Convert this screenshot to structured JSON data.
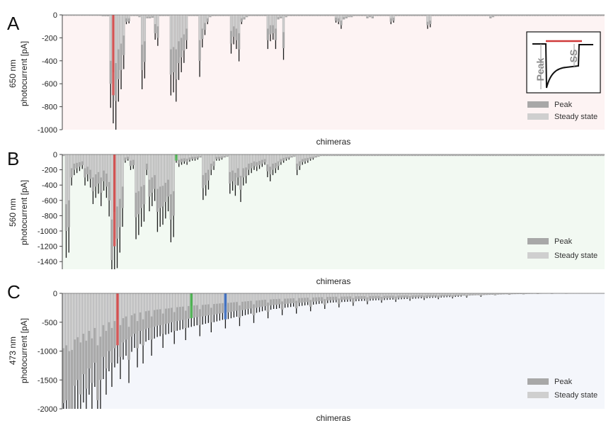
{
  "figure": {
    "legend": {
      "peak_label": "Peak",
      "steady_label": "Steady state",
      "peak_color": "#a8a8a8",
      "steady_color": "#cfcfcf"
    },
    "inset": {
      "peak_label": "Peak",
      "ss_label": "SS",
      "bar_color": "#d03a3a"
    }
  },
  "chart_data": [
    {
      "type": "bar",
      "panel_letter": "A",
      "ylabel": "650 nm photocurrent [pA]",
      "xlabel": "chimeras",
      "ylim": [
        -1000,
        0
      ],
      "yticks": [
        0,
        -200,
        -400,
        -600,
        -800,
        -1000
      ],
      "bg_color": "#fdf3f3",
      "highlights": [
        {
          "index": 19,
          "color": "#d05050"
        }
      ],
      "peak_values": [
        -8,
        -8,
        -8,
        -8,
        -8,
        -8,
        -8,
        -8,
        -8,
        -8,
        -8,
        -8,
        -8,
        -8,
        -8,
        -12,
        -12,
        -12,
        -600,
        -700,
        -750,
        -560,
        -480,
        -350,
        -60,
        -55,
        -10,
        -10,
        -10,
        -20,
        -480,
        -410,
        -30,
        -30,
        -25,
        -160,
        -200,
        -10,
        -10,
        -10,
        -10,
        -520,
        -500,
        -560,
        -420,
        -370,
        -310,
        -220,
        -10,
        -10,
        -10,
        -10,
        -400,
        -210,
        -130,
        -60,
        -20,
        -10,
        -10,
        -10,
        -10,
        -10,
        -10,
        -10,
        -250,
        -190,
        -220,
        -300,
        -60,
        -40,
        -20,
        -10,
        -10,
        -10,
        -10,
        -10,
        -10,
        -10,
        -220,
        -170,
        -160,
        -220,
        -40,
        -30,
        -290,
        -20,
        -10,
        -10,
        -10,
        -10,
        -10,
        -10,
        -10,
        -10,
        -10,
        -10,
        -10,
        -10,
        -10,
        -10,
        -10,
        -10,
        -10,
        -10,
        -50,
        -60,
        -90,
        -40,
        -30,
        -20,
        -20,
        -10,
        -10,
        -10,
        -10,
        -10,
        -30,
        -20,
        -30,
        -10,
        -10,
        -10,
        -10,
        -10,
        -10,
        -60,
        -50,
        -10,
        -10,
        -10,
        -10,
        -10,
        -10,
        -10,
        -10,
        -10,
        -10,
        -10,
        -10,
        -90,
        -80,
        -10,
        -10,
        -10,
        -10,
        -10,
        -10,
        -10,
        -10,
        -10,
        -10,
        -10,
        -10,
        -10,
        -10,
        -10,
        -10,
        -10,
        -10,
        -10,
        -10,
        -10,
        -10,
        -30,
        -20,
        -10,
        -10,
        -10,
        -10,
        -10,
        -10,
        -10,
        -10,
        -10,
        -10,
        -10,
        -10,
        -10,
        -10,
        -10,
        -10,
        -10,
        -10,
        -10,
        -10,
        -10,
        -10,
        -10,
        -10,
        -10,
        -10,
        -10,
        -10,
        -10,
        -10,
        -10,
        -10,
        -10,
        -10,
        -10,
        -10,
        -10,
        -10,
        -10,
        -10,
        -10,
        -10
      ],
      "steady_values": [
        -4,
        -4,
        -4,
        -4,
        -4,
        -4,
        -4,
        -4,
        -4,
        -4,
        -4,
        -4,
        -4,
        -4,
        -4,
        -6,
        -6,
        -6,
        -400,
        -500,
        -420,
        -300,
        -250,
        -180,
        -30,
        -30,
        -5,
        -5,
        -5,
        -10,
        -260,
        -230,
        -15,
        -15,
        -12,
        -80,
        -100,
        -5,
        -5,
        -5,
        -5,
        -300,
        -280,
        -300,
        -230,
        -200,
        -170,
        -120,
        -5,
        -5,
        -5,
        -5,
        -220,
        -120,
        -70,
        -30,
        -10,
        -5,
        -5,
        -5,
        -5,
        -5,
        -5,
        -5,
        -140,
        -100,
        -120,
        -160,
        -30,
        -20,
        -10,
        -5,
        -5,
        -5,
        -5,
        -5,
        -5,
        -5,
        -120,
        -90,
        -90,
        -120,
        -20,
        -15,
        -150,
        -10,
        -5,
        -5,
        -5,
        -5,
        -5,
        -5,
        -5,
        -5,
        -5,
        -5,
        -5,
        -5,
        -5,
        -5,
        -5,
        -5,
        -5,
        -5,
        -25,
        -30,
        -50,
        -20,
        -15,
        -10,
        -10,
        -5,
        -5,
        -5,
        -5,
        -5,
        -15,
        -10,
        -15,
        -5,
        -5,
        -5,
        -5,
        -5,
        -5,
        -30,
        -25,
        -5,
        -5,
        -5,
        -5,
        -5,
        -5,
        -5,
        -5,
        -5,
        -5,
        -5,
        -5,
        -60,
        -50,
        -5,
        -5,
        -5,
        -5,
        -5,
        -5,
        -5,
        -5,
        -5,
        -5,
        -5,
        -5,
        -5,
        -5,
        -5,
        -5,
        -5,
        -5,
        -5,
        -5,
        -5,
        -5,
        -15,
        -10,
        -5,
        -5,
        -5,
        -5,
        -5,
        -5,
        -5,
        -5,
        -5,
        -5,
        -5,
        -5,
        -5,
        -5,
        -5,
        -5,
        -5,
        -5,
        -5,
        -5,
        -5,
        -5,
        -5,
        -5,
        -5,
        -5,
        -5,
        -5,
        -5,
        -5,
        -5,
        -5,
        -5,
        -5,
        -5,
        -5,
        -5,
        -5,
        -5,
        -5,
        -5,
        -5
      ]
    },
    {
      "type": "bar",
      "panel_letter": "B",
      "ylabel": "560 nm photocurrent [pA]",
      "xlabel": "chimeras",
      "ylim": [
        -1500,
        0
      ],
      "yticks": [
        0,
        -200,
        -400,
        -600,
        -800,
        -1000,
        -1200,
        -1400
      ],
      "bg_color": "#f2f9f2",
      "highlights": [
        {
          "index": 19,
          "color": "#d05050"
        },
        {
          "index": 42,
          "color": "#4caf50"
        }
      ],
      "peak_values": [
        -20,
        -1000,
        -950,
        -300,
        -200,
        -180,
        -160,
        -140,
        -300,
        -260,
        -320,
        -480,
        -420,
        -380,
        -500,
        -350,
        -420,
        -600,
        -1380,
        -1200,
        -1100,
        -950,
        -700,
        -80,
        -60,
        -150,
        -140,
        -820,
        -780,
        -700,
        -650,
        -200,
        -550,
        -500,
        -450,
        -750,
        -700,
        -680,
        -620,
        -550,
        -850,
        -800,
        -80,
        -120,
        -100,
        -90,
        -100,
        -70,
        -60,
        -60,
        -50,
        -40,
        -440,
        -400,
        -340,
        -200,
        -150,
        -60,
        -60,
        -50,
        -40,
        -30,
        -380,
        -350,
        -400,
        -300,
        -460,
        -300,
        -280,
        -200,
        -180,
        -150,
        -160,
        -140,
        -120,
        -100,
        -220,
        -260,
        -200,
        -180,
        -150,
        -100,
        -80,
        -60,
        -50,
        -40,
        -30,
        -200,
        -150,
        -100,
        -90,
        -80,
        -60,
        -50,
        -40,
        -30,
        -20,
        -20,
        -20,
        -20,
        -20,
        -20,
        -20,
        -20,
        -20,
        -20,
        -20,
        -20,
        -20,
        -20,
        -20,
        -20,
        -20,
        -20,
        -20,
        -20,
        -20,
        -20,
        -20,
        -20,
        -20,
        -20,
        -20,
        -20,
        -20,
        -20,
        -20,
        -20,
        -20,
        -20,
        -20,
        -20,
        -20,
        -20,
        -20,
        -20,
        -20,
        -20,
        -20,
        -20,
        -20,
        -20,
        -20,
        -20,
        -20,
        -20,
        -20,
        -20,
        -20,
        -20,
        -20,
        -20,
        -20,
        -20,
        -20,
        -20,
        -20,
        -20,
        -20,
        -20,
        -20,
        -20,
        -20,
        -20,
        -20,
        -20,
        -20,
        -20,
        -20,
        -20,
        -20,
        -20,
        -20,
        -20,
        -20,
        -20,
        -20,
        -20,
        -20,
        -20,
        -20,
        -20,
        -20,
        -20,
        -20,
        -20,
        -20,
        -20,
        -20,
        -20,
        -20,
        -20,
        -20,
        -20,
        -20,
        -20,
        -20,
        -20,
        -20,
        -20,
        -20,
        -20
      ],
      "steady_values": [
        -10,
        -650,
        -600,
        -180,
        -120,
        -110,
        -100,
        -90,
        -180,
        -160,
        -200,
        -300,
        -260,
        -230,
        -300,
        -210,
        -250,
        -360,
        -850,
        -750,
        -680,
        -580,
        -420,
        -40,
        -30,
        -80,
        -70,
        -500,
        -480,
        -420,
        -400,
        -120,
        -330,
        -300,
        -270,
        -450,
        -420,
        -410,
        -370,
        -330,
        -520,
        -480,
        -40,
        -70,
        -55,
        -50,
        -55,
        -40,
        -30,
        -30,
        -25,
        -20,
        -270,
        -240,
        -200,
        -120,
        -90,
        -30,
        -30,
        -25,
        -20,
        -15,
        -230,
        -210,
        -240,
        -180,
        -280,
        -180,
        -170,
        -120,
        -110,
        -90,
        -100,
        -85,
        -70,
        -60,
        -130,
        -160,
        -120,
        -110,
        -90,
        -60,
        -45,
        -35,
        -30,
        -20,
        -15,
        -120,
        -90,
        -60,
        -50,
        -45,
        -35,
        -30,
        -20,
        -15,
        -10,
        -10,
        -10,
        -10,
        -10,
        -10,
        -10,
        -10,
        -10,
        -10,
        -10,
        -10,
        -10,
        -10,
        -10,
        -10,
        -10,
        -10,
        -10,
        -10,
        -10,
        -10,
        -10,
        -10,
        -10,
        -10,
        -10,
        -10,
        -10,
        -10,
        -10,
        -10,
        -10,
        -10,
        -10,
        -10,
        -10,
        -10,
        -10,
        -10,
        -10,
        -10,
        -10,
        -10,
        -10,
        -10,
        -10,
        -10,
        -10,
        -10,
        -10,
        -10,
        -10,
        -10,
        -10,
        -10,
        -10,
        -10,
        -10,
        -10,
        -10,
        -10,
        -10,
        -10,
        -10,
        -10,
        -10,
        -10,
        -10,
        -10,
        -10,
        -10,
        -10,
        -10,
        -10,
        -10,
        -10,
        -10,
        -10,
        -10,
        -10,
        -10,
        -10,
        -10,
        -10,
        -10,
        -10,
        -10,
        -10,
        -10,
        -10,
        -10,
        -10,
        -10,
        -10,
        -10,
        -10,
        -10,
        -10,
        -10,
        -10,
        -10,
        -10,
        -10,
        -10,
        -10
      ]
    },
    {
      "type": "bar",
      "panel_letter": "C",
      "ylabel": "473 nm photocurrent [pA]",
      "xlabel": "chimeras",
      "ylim": [
        -2000,
        0
      ],
      "yticks": [
        0,
        -500,
        -1000,
        -1500,
        -2000
      ],
      "bg_color": "#f4f6fb",
      "highlights": [
        {
          "index": 19,
          "color": "#d05050"
        },
        {
          "index": 45,
          "color": "#4caf50"
        },
        {
          "index": 57,
          "color": "#3f6fbf"
        }
      ],
      "peak_values": [
        -1900,
        -1850,
        -2000,
        -2000,
        -1600,
        -1500,
        -1750,
        -1400,
        -1650,
        -1300,
        -1550,
        -1200,
        -1850,
        -1500,
        -1100,
        -1300,
        -1000,
        -1200,
        -950,
        -900,
        -1100,
        -850,
        -800,
        -1150,
        -750,
        -700,
        -950,
        -650,
        -900,
        -620,
        -600,
        -800,
        -580,
        -560,
        -550,
        -700,
        -530,
        -520,
        -500,
        -650,
        -480,
        -470,
        -460,
        -600,
        -440,
        -430,
        -420,
        -410,
        -550,
        -400,
        -390,
        -380,
        -500,
        -370,
        -360,
        -350,
        -340,
        -450,
        -330,
        -320,
        -310,
        -300,
        -420,
        -290,
        -280,
        -270,
        -260,
        -380,
        -250,
        -240,
        -230,
        -220,
        -320,
        -210,
        -200,
        -200,
        -190,
        -280,
        -185,
        -180,
        -175,
        -170,
        -260,
        -165,
        -160,
        -155,
        -150,
        -230,
        -145,
        -140,
        -135,
        -130,
        -200,
        -125,
        -120,
        -118,
        -115,
        -180,
        -112,
        -110,
        -108,
        -105,
        -160,
        -102,
        -100,
        -98,
        -96,
        -140,
        -94,
        -92,
        -90,
        -88,
        -120,
        -86,
        -84,
        -82,
        -80,
        -110,
        -78,
        -76,
        -74,
        -72,
        -95,
        -70,
        -68,
        -66,
        -64,
        -85,
        -62,
        -60,
        -58,
        -56,
        -75,
        -54,
        -52,
        -50,
        -48,
        -65,
        -46,
        -44,
        -42,
        -40,
        -55,
        -38,
        -36,
        -34,
        -32,
        -45,
        -30,
        -28,
        -26,
        -24,
        -35,
        -22,
        -20,
        -18,
        -16,
        -25,
        -15,
        -14,
        -13,
        -12,
        -18,
        -11,
        -10,
        -9,
        -8,
        -12,
        -8,
        -7,
        -7,
        -6,
        -10,
        -6,
        -6,
        -5,
        -5,
        -8,
        -5,
        -5,
        -4,
        -4,
        -6,
        -4,
        -4,
        -4,
        -4,
        -5,
        -3,
        -3,
        -3
      ],
      "steady_values": [
        -950,
        -900,
        -1000,
        -980,
        -800,
        -760,
        -850,
        -700,
        -820,
        -650,
        -780,
        -600,
        -900,
        -750,
        -550,
        -650,
        -500,
        -600,
        -480,
        -460,
        -550,
        -430,
        -400,
        -580,
        -380,
        -350,
        -480,
        -330,
        -450,
        -310,
        -300,
        -400,
        -290,
        -280,
        -275,
        -350,
        -265,
        -260,
        -250,
        -325,
        -240,
        -235,
        -230,
        -300,
        -220,
        -215,
        -210,
        -205,
        -275,
        -200,
        -195,
        -190,
        -250,
        -185,
        -180,
        -175,
        -170,
        -225,
        -165,
        -160,
        -155,
        -150,
        -210,
        -145,
        -140,
        -135,
        -130,
        -190,
        -125,
        -120,
        -115,
        -110,
        -160,
        -105,
        -100,
        -100,
        -95,
        -140,
        -92,
        -90,
        -88,
        -85,
        -130,
        -82,
        -80,
        -78,
        -75,
        -115,
        -72,
        -70,
        -68,
        -65,
        -100,
        -62,
        -60,
        -59,
        -58,
        -90,
        -56,
        -55,
        -54,
        -52,
        -80,
        -51,
        -50,
        -49,
        -48,
        -70,
        -47,
        -46,
        -45,
        -44,
        -60,
        -43,
        -42,
        -41,
        -40,
        -55,
        -39,
        -38,
        -37,
        -36,
        -48,
        -35,
        -34,
        -33,
        -32,
        -42,
        -31,
        -30,
        -29,
        -28,
        -38,
        -27,
        -26,
        -25,
        -24,
        -32,
        -23,
        -22,
        -21,
        -20,
        -28,
        -19,
        -18,
        -17,
        -16,
        -22,
        -15,
        -14,
        -13,
        -12,
        -18,
        -11,
        -10,
        -9,
        -8,
        -12,
        -8,
        -7,
        -7,
        -6,
        -9,
        -6,
        -5,
        -5,
        -4,
        -6,
        -4,
        -4,
        -4,
        -3,
        -5,
        -3,
        -3,
        -3,
        -3,
        -4,
        -3,
        -3,
        -2,
        -2,
        -3,
        -2,
        -2,
        -2,
        -2,
        -3,
        -2,
        -2,
        -2
      ]
    }
  ]
}
